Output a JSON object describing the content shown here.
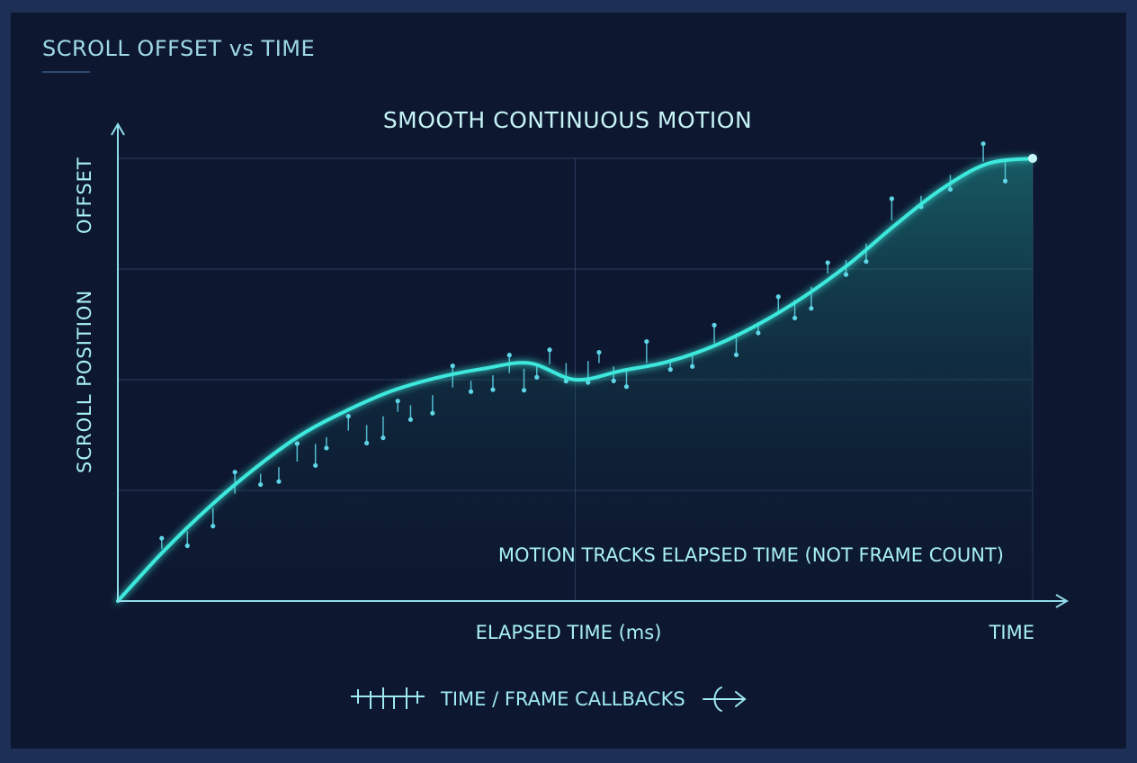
{
  "header": {
    "title": "SCROLL OFFSET vs TIME"
  },
  "legend": {
    "label": "TIME / FRAME CALLBACKS"
  },
  "chart_data": {
    "type": "line",
    "title": "SMOOTH CONTINUOUS MOTION",
    "xlabel": "ELAPSED TIME (ms)",
    "x_axis_end_label": "TIME",
    "ylabel": "SCROLL POSITION",
    "y_axis_end_label": "OFFSET",
    "annotation": "MOTION TRACKS ELAPSED TIME (NOT FRAME COUNT)",
    "xlim": [
      0,
      1
    ],
    "ylim": [
      0,
      4
    ],
    "grid": true,
    "colors": {
      "curve": "#3de8dc",
      "callback": "#5fd6e8",
      "text": "#a8f0f4",
      "grid": "#2b3c5c",
      "axis": "#8fdcea"
    },
    "series": [
      {
        "kind": "curve",
        "x": [
          0,
          0.05,
          0.1,
          0.15,
          0.2,
          0.25,
          0.3,
          0.35,
          0.4,
          0.45,
          0.5,
          0.55,
          0.6,
          0.65,
          0.7,
          0.75,
          0.8,
          0.85,
          0.9,
          0.95,
          1.0
        ],
        "values": [
          0,
          0.45,
          0.85,
          1.2,
          1.5,
          1.72,
          1.9,
          2.02,
          2.1,
          2.15,
          2.0,
          2.08,
          2.16,
          2.3,
          2.5,
          2.75,
          3.05,
          3.4,
          3.72,
          3.95,
          4.0
        ]
      },
      {
        "kind": "callbacks",
        "points": [
          [
            0.048,
            0.47
          ],
          [
            0.076,
            0.63
          ],
          [
            0.104,
            0.84
          ],
          [
            0.128,
            0.97
          ],
          [
            0.156,
            1.15
          ],
          [
            0.176,
            1.21
          ],
          [
            0.196,
            1.26
          ],
          [
            0.216,
            1.42
          ],
          [
            0.228,
            1.48
          ],
          [
            0.252,
            1.54
          ],
          [
            0.272,
            1.59
          ],
          [
            0.29,
            1.67
          ],
          [
            0.306,
            1.71
          ],
          [
            0.32,
            1.77
          ],
          [
            0.344,
            1.86
          ],
          [
            0.366,
            1.93
          ],
          [
            0.386,
            1.99
          ],
          [
            0.41,
            2.04
          ],
          [
            0.428,
            2.06
          ],
          [
            0.444,
            2.1
          ],
          [
            0.458,
            2.12
          ],
          [
            0.472,
            2.14
          ],
          [
            0.49,
            2.15
          ],
          [
            0.514,
            2.17
          ],
          [
            0.526,
            2.15
          ],
          [
            0.542,
            2.12
          ],
          [
            0.556,
            2.1
          ],
          [
            0.578,
            2.15
          ],
          [
            0.604,
            2.19
          ],
          [
            0.628,
            2.25
          ],
          [
            0.652,
            2.33
          ],
          [
            0.676,
            2.42
          ],
          [
            0.7,
            2.52
          ],
          [
            0.722,
            2.62
          ],
          [
            0.74,
            2.72
          ],
          [
            0.758,
            2.84
          ],
          [
            0.776,
            2.96
          ],
          [
            0.796,
            3.08
          ],
          [
            0.818,
            3.23
          ],
          [
            0.846,
            3.44
          ],
          [
            0.878,
            3.66
          ],
          [
            0.91,
            3.85
          ],
          [
            0.946,
            3.97
          ],
          [
            0.97,
            3.99
          ]
        ]
      }
    ]
  }
}
